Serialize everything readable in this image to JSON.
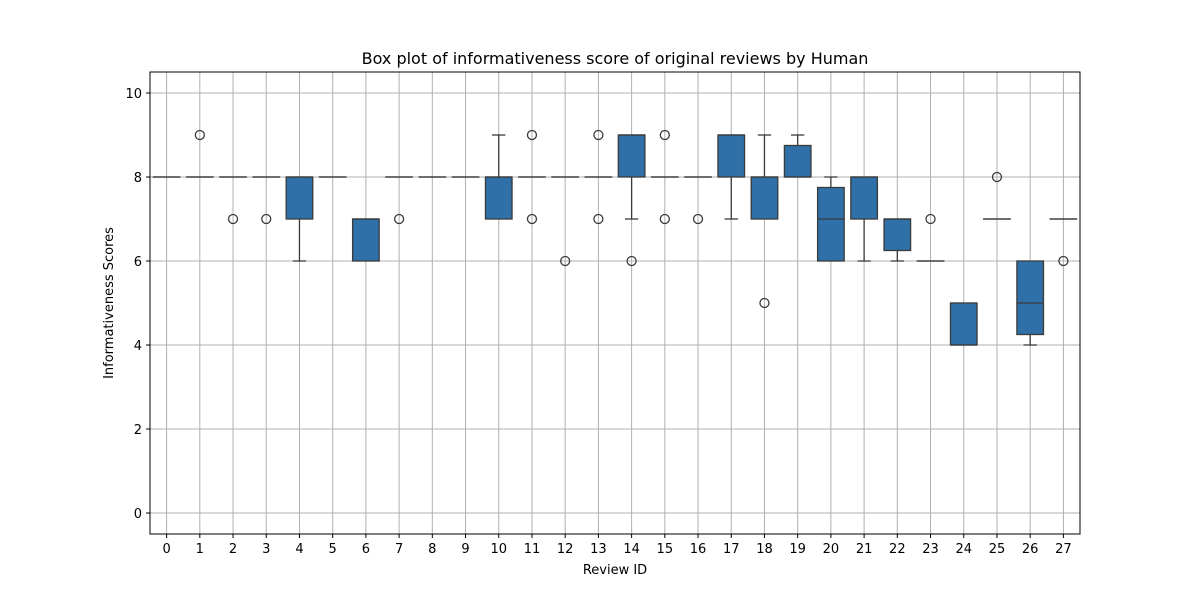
{
  "chart_data": {
    "type": "box",
    "title": "Box plot of informativeness score of original reviews by Human",
    "xlabel": "Review ID",
    "ylabel": "Informativeness Scores",
    "ylim": [
      -0.5,
      10.5
    ],
    "yticks": [
      0,
      2,
      4,
      6,
      8,
      10
    ],
    "grid": true,
    "color": "#2f70a8",
    "categories": [
      "0",
      "1",
      "2",
      "3",
      "4",
      "5",
      "6",
      "7",
      "8",
      "9",
      "10",
      "11",
      "12",
      "13",
      "14",
      "15",
      "16",
      "17",
      "18",
      "19",
      "20",
      "21",
      "22",
      "23",
      "24",
      "25",
      "26",
      "27"
    ],
    "boxes": [
      {
        "q1": 8,
        "median": 8,
        "q3": 8,
        "whisker_low": 8,
        "whisker_high": 8,
        "outliers": []
      },
      {
        "q1": 8,
        "median": 8,
        "q3": 8,
        "whisker_low": 8,
        "whisker_high": 8,
        "outliers": [
          9
        ]
      },
      {
        "q1": 8,
        "median": 8,
        "q3": 8,
        "whisker_low": 8,
        "whisker_high": 8,
        "outliers": [
          7
        ]
      },
      {
        "q1": 8,
        "median": 8,
        "q3": 8,
        "whisker_low": 8,
        "whisker_high": 8,
        "outliers": [
          7
        ]
      },
      {
        "q1": 7,
        "median": 8,
        "q3": 8,
        "whisker_low": 6,
        "whisker_high": 8,
        "outliers": []
      },
      {
        "q1": 8,
        "median": 8,
        "q3": 8,
        "whisker_low": 8,
        "whisker_high": 8,
        "outliers": []
      },
      {
        "q1": 6,
        "median": 7,
        "q3": 7,
        "whisker_low": 6,
        "whisker_high": 7,
        "outliers": []
      },
      {
        "q1": 8,
        "median": 8,
        "q3": 8,
        "whisker_low": 8,
        "whisker_high": 8,
        "outliers": [
          7
        ]
      },
      {
        "q1": 8,
        "median": 8,
        "q3": 8,
        "whisker_low": 8,
        "whisker_high": 8,
        "outliers": []
      },
      {
        "q1": 8,
        "median": 8,
        "q3": 8,
        "whisker_low": 8,
        "whisker_high": 8,
        "outliers": []
      },
      {
        "q1": 7,
        "median": 8,
        "q3": 8,
        "whisker_low": 7,
        "whisker_high": 9,
        "outliers": []
      },
      {
        "q1": 8,
        "median": 8,
        "q3": 8,
        "whisker_low": 8,
        "whisker_high": 8,
        "outliers": [
          9,
          7
        ]
      },
      {
        "q1": 8,
        "median": 8,
        "q3": 8,
        "whisker_low": 8,
        "whisker_high": 8,
        "outliers": [
          6
        ]
      },
      {
        "q1": 8,
        "median": 8,
        "q3": 8,
        "whisker_low": 8,
        "whisker_high": 8,
        "outliers": [
          9,
          7
        ]
      },
      {
        "q1": 8,
        "median": 9,
        "q3": 9,
        "whisker_low": 7,
        "whisker_high": 9,
        "outliers": [
          6
        ]
      },
      {
        "q1": 8,
        "median": 8,
        "q3": 8,
        "whisker_low": 8,
        "whisker_high": 8,
        "outliers": [
          9,
          7
        ]
      },
      {
        "q1": 8,
        "median": 8,
        "q3": 8,
        "whisker_low": 8,
        "whisker_high": 8,
        "outliers": [
          7
        ]
      },
      {
        "q1": 8,
        "median": 9,
        "q3": 9,
        "whisker_low": 7,
        "whisker_high": 9,
        "outliers": []
      },
      {
        "q1": 7,
        "median": 8,
        "q3": 8,
        "whisker_low": 7,
        "whisker_high": 9,
        "outliers": [
          5
        ]
      },
      {
        "q1": 8,
        "median": 8,
        "q3": 8.75,
        "whisker_low": 8,
        "whisker_high": 9,
        "outliers": []
      },
      {
        "q1": 6,
        "median": 7,
        "q3": 7.75,
        "whisker_low": 6,
        "whisker_high": 8,
        "outliers": []
      },
      {
        "q1": 7,
        "median": 8,
        "q3": 8,
        "whisker_low": 6,
        "whisker_high": 8,
        "outliers": []
      },
      {
        "q1": 6.25,
        "median": 7,
        "q3": 7,
        "whisker_low": 6,
        "whisker_high": 7,
        "outliers": []
      },
      {
        "q1": 6,
        "median": 6,
        "q3": 6,
        "whisker_low": 6,
        "whisker_high": 6,
        "outliers": [
          7
        ]
      },
      {
        "q1": 4,
        "median": 4,
        "q3": 5,
        "whisker_low": 4,
        "whisker_high": 5,
        "outliers": []
      },
      {
        "q1": 7,
        "median": 7,
        "q3": 7,
        "whisker_low": 7,
        "whisker_high": 7,
        "outliers": [
          8
        ]
      },
      {
        "q1": 4.25,
        "median": 5,
        "q3": 6,
        "whisker_low": 4,
        "whisker_high": 6,
        "outliers": []
      },
      {
        "q1": 7,
        "median": 7,
        "q3": 7,
        "whisker_low": 7,
        "whisker_high": 7,
        "outliers": [
          6
        ]
      }
    ]
  }
}
